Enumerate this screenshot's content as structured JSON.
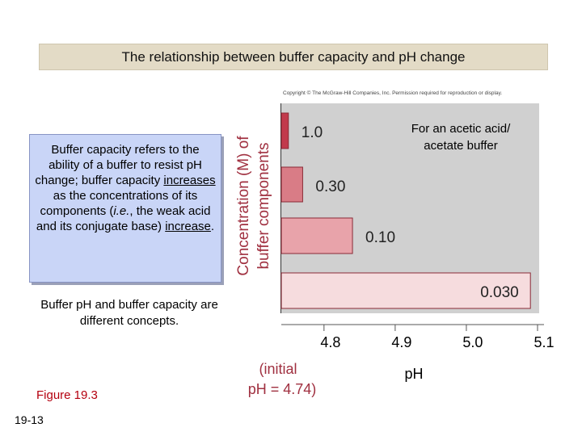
{
  "slide": {
    "title": "The relationship between buffer capacity and pH change",
    "definition_parts": [
      "Buffer capacity refers to the ability of a buffer to resist pH change; buffer capacity ",
      "increases",
      " as the concentrations of its components (",
      "i.e.",
      ", the weak acid and its conjugate base) ",
      "increase",
      "."
    ],
    "note": "Buffer pH and buffer capacity are different concepts.",
    "figure_label": "Figure 19.3",
    "slide_number": "19-13",
    "copyright": "Copyright © The McGraw-Hill Companies, Inc. Permission required for reproduction or display."
  },
  "chart_data": {
    "type": "bar",
    "orientation": "horizontal",
    "title": "For an acetic acid/ acetate buffer",
    "xlabel": "pH",
    "ylabel_line1": "Concentration (M) of",
    "ylabel_line2": "buffer components",
    "xlim": [
      4.74,
      5.1
    ],
    "xticks": [
      "4.8",
      "4.9",
      "5.0",
      "5.1"
    ],
    "x_start_label_line1": "(initial",
    "x_start_label_line2": "pH = 4.74)",
    "bars": [
      {
        "label": "1.0",
        "value": 4.75,
        "color": "#c23a4c"
      },
      {
        "label": "0.30",
        "value": 4.77,
        "color": "#d97c86"
      },
      {
        "label": "0.10",
        "value": 4.84,
        "color": "#e8a3aa"
      },
      {
        "label": "0.030",
        "value": 5.09,
        "color": "#f6dcde"
      }
    ],
    "colors": {
      "plot_background": "#d0d0d0",
      "axis_label": "#a03040"
    }
  }
}
